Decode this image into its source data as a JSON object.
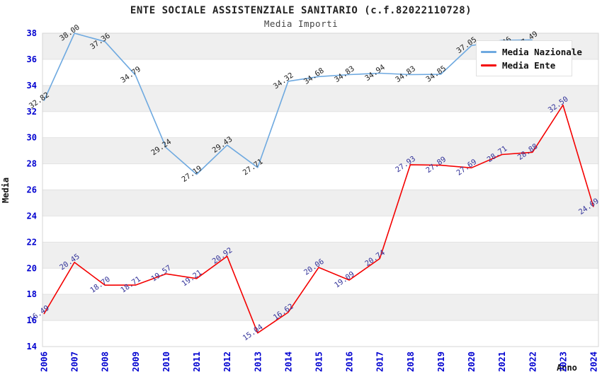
{
  "header": {
    "title": "ENTE SOCIALE ASSISTENZIALE SANITARIO (c.f.82022110728)",
    "subtitle": "Media Importi"
  },
  "chart_data": {
    "type": "line",
    "title": "ENTE SOCIALE ASSISTENZIALE SANITARIO (c.f.82022110728)",
    "subtitle": "Media Importi",
    "xlabel": "Anno",
    "ylabel": "Media",
    "ylim": [
      14,
      38
    ],
    "ytick_step": 2,
    "y_ticks": [
      14,
      16,
      18,
      20,
      22,
      24,
      26,
      28,
      30,
      32,
      34,
      36,
      38
    ],
    "categories": [
      2006,
      2007,
      2008,
      2009,
      2010,
      2011,
      2012,
      2013,
      2014,
      2015,
      2016,
      2017,
      2018,
      2019,
      2020,
      2021,
      2022,
      2023,
      2024
    ],
    "grid": "horizontal-bands",
    "band_color": "#efefef",
    "gridline_color": "#e2e2e2",
    "border_color": "#d4d4d4",
    "tick_label_color": "#0000d0",
    "legend_position": "top-right",
    "series": [
      {
        "name": "Media Nazionale",
        "color": "#6ea9e0",
        "label_color": "#222222",
        "x": [
          2006,
          2007,
          2008,
          2009,
          2010,
          2011,
          2012,
          2013,
          2014,
          2015,
          2016,
          2017,
          2018,
          2019,
          2020,
          2021,
          2022
        ],
        "values": [
          32.82,
          38.0,
          37.36,
          34.79,
          29.24,
          27.19,
          29.43,
          27.71,
          34.32,
          34.68,
          34.83,
          34.94,
          34.83,
          34.85,
          37.05,
          37.46,
          37.49
        ],
        "label_overrides": {
          "2021": {
            "dx": 14,
            "dy": 0
          }
        }
      },
      {
        "name": "Media Ente",
        "color": "#f40000",
        "label_color": "#333399",
        "x": [
          2006,
          2007,
          2008,
          2009,
          2010,
          2011,
          2012,
          2013,
          2014,
          2015,
          2016,
          2017,
          2018,
          2019,
          2020,
          2021,
          2022,
          2023,
          2024
        ],
        "values": [
          16.49,
          20.45,
          18.7,
          18.71,
          19.57,
          19.21,
          20.92,
          15.04,
          16.62,
          20.06,
          19.09,
          20.74,
          27.93,
          27.89,
          27.69,
          28.71,
          28.88,
          32.5,
          24.69
        ]
      }
    ]
  }
}
